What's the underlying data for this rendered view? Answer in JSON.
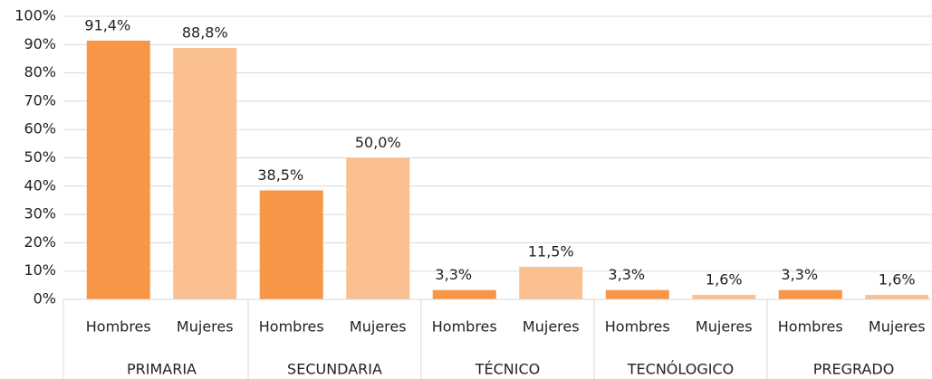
{
  "chart_data": {
    "type": "bar",
    "groups": [
      "PRIMARIA",
      "SECUNDARIA",
      "TÉCNICO",
      "TECNÓLOGICO",
      "PREGRADO"
    ],
    "categories": [
      "Hombres",
      "Mujeres",
      "Hombres",
      "Mujeres",
      "Hombres",
      "Mujeres",
      "Hombres",
      "Mujeres",
      "Hombres",
      "Mujeres"
    ],
    "values": [
      91.4,
      88.8,
      38.5,
      50.0,
      3.3,
      11.5,
      3.3,
      1.6,
      3.3,
      1.6
    ],
    "value_labels": [
      "91,4%",
      "88,8%",
      "38,5%",
      "50,0%",
      "3,3%",
      "11,5%",
      "3,3%",
      "1,6%",
      "3,3%",
      "1,6%"
    ],
    "colors": [
      "#f79646",
      "#fac090"
    ],
    "ylim": [
      0,
      100
    ],
    "yticks": [
      {
        "value": 0,
        "label": "0%"
      },
      {
        "value": 10,
        "label": "10%"
      },
      {
        "value": 20,
        "label": "20%"
      },
      {
        "value": 30,
        "label": "30%"
      },
      {
        "value": 40,
        "label": "40%"
      },
      {
        "value": 50,
        "label": "50%"
      },
      {
        "value": 60,
        "label": "60%"
      },
      {
        "value": 70,
        "label": "70%"
      },
      {
        "value": 80,
        "label": "80%"
      },
      {
        "value": 90,
        "label": "90%"
      },
      {
        "value": 100,
        "label": "100%"
      }
    ],
    "grid": true
  }
}
